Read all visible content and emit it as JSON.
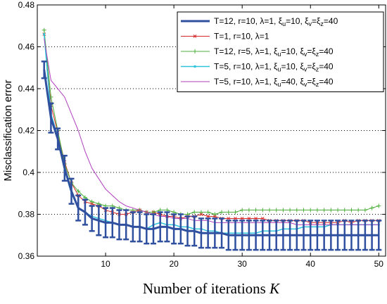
{
  "chart_data": {
    "type": "line",
    "title": "",
    "xlabel": "Number of iterations",
    "xlabel_var": "K",
    "ylabel": "Misclassification error",
    "xlim": [
      0,
      51
    ],
    "ylim": [
      0.36,
      0.48
    ],
    "xticks": [
      "10",
      "20",
      "30",
      "40",
      "50"
    ],
    "yticks": [
      "0.36",
      "0.38",
      "0.4",
      "0.42",
      "0.44",
      "0.46",
      "0.48"
    ],
    "grid": "horizontal dotted",
    "legend_position": "top-right",
    "series": [
      {
        "name": "T=12, r=10, λ=1, ξu=10, ξv=ξz=40",
        "legend": [
          {
            "t": "T=12, r=10, λ=1, ξ"
          },
          {
            "t": "u",
            "sub": true
          },
          {
            "t": "=10, ξ"
          },
          {
            "t": "v",
            "sub": true
          },
          {
            "t": "=ξ"
          },
          {
            "t": "z",
            "sub": true
          },
          {
            "t": "=40"
          }
        ],
        "color": "#2f4f9f",
        "marker": "none",
        "width": 3,
        "errorbar": true,
        "x": [
          1,
          2,
          3,
          4,
          5,
          6,
          7,
          8,
          9,
          10,
          11,
          12,
          13,
          14,
          15,
          16,
          17,
          18,
          19,
          20,
          21,
          22,
          23,
          24,
          25,
          26,
          27,
          28,
          29,
          30,
          31,
          32,
          33,
          34,
          35,
          36,
          37,
          38,
          39,
          40,
          41,
          42,
          43,
          44,
          45,
          46,
          47,
          48,
          49,
          50
        ],
        "y": [
          0.449,
          0.426,
          0.416,
          0.402,
          0.391,
          0.383,
          0.381,
          0.378,
          0.377,
          0.376,
          0.376,
          0.375,
          0.375,
          0.374,
          0.374,
          0.373,
          0.373,
          0.374,
          0.374,
          0.373,
          0.373,
          0.372,
          0.372,
          0.371,
          0.371,
          0.371,
          0.371,
          0.37,
          0.37,
          0.37,
          0.37,
          0.37,
          0.37,
          0.37,
          0.37,
          0.37,
          0.37,
          0.37,
          0.37,
          0.37,
          0.37,
          0.37,
          0.37,
          0.37,
          0.37,
          0.37,
          0.37,
          0.37,
          0.37,
          0.37
        ],
        "err": [
          0.004,
          0.007,
          0.005,
          0.006,
          0.006,
          0.006,
          0.006,
          0.006,
          0.007,
          0.007,
          0.007,
          0.007,
          0.007,
          0.007,
          0.007,
          0.007,
          0.007,
          0.007,
          0.007,
          0.007,
          0.007,
          0.007,
          0.007,
          0.007,
          0.007,
          0.007,
          0.007,
          0.007,
          0.007,
          0.007,
          0.007,
          0.007,
          0.007,
          0.007,
          0.007,
          0.007,
          0.007,
          0.007,
          0.007,
          0.007,
          0.007,
          0.007,
          0.007,
          0.007,
          0.007,
          0.007,
          0.007,
          0.007,
          0.007,
          0.007
        ]
      },
      {
        "name": "T=1, r=10, λ=1",
        "legend": [
          {
            "t": "T=1, r=10, λ=1"
          }
        ],
        "color": "#d62728",
        "marker": "x",
        "width": 1,
        "x": [
          1,
          2,
          3,
          4,
          5,
          6,
          7,
          8,
          9,
          10,
          11,
          12,
          13,
          14,
          15,
          16,
          17,
          18,
          19,
          20,
          21,
          22,
          23,
          24,
          25,
          26,
          27,
          28,
          29,
          30,
          31,
          32,
          33,
          34,
          35,
          36,
          37,
          38,
          39,
          40,
          41,
          42,
          43,
          44,
          45,
          46,
          47,
          48,
          49,
          50
        ],
        "y": [
          0.466,
          0.432,
          0.419,
          0.405,
          0.395,
          0.389,
          0.386,
          0.385,
          0.384,
          0.382,
          0.381,
          0.38,
          0.38,
          0.381,
          0.382,
          0.381,
          0.381,
          0.38,
          0.379,
          0.379,
          0.378,
          0.379,
          0.379,
          0.38,
          0.379,
          0.379,
          0.378,
          0.378,
          0.378,
          0.378,
          0.378,
          0.378,
          0.378,
          0.377,
          0.377,
          0.377,
          0.377,
          0.377,
          0.377,
          0.376,
          0.376,
          0.376,
          0.376,
          0.376,
          0.377,
          0.376,
          0.377,
          0.377,
          0.377,
          0.377
        ]
      },
      {
        "name": "T=12, r=5, λ=1, ξu=10, ξv=ξz=40",
        "legend": [
          {
            "t": "T=12, r=5, λ=1, ξ"
          },
          {
            "t": "u",
            "sub": true
          },
          {
            "t": "=10, ξ"
          },
          {
            "t": "v",
            "sub": true
          },
          {
            "t": "=ξ"
          },
          {
            "t": "z",
            "sub": true
          },
          {
            "t": "=40"
          }
        ],
        "color": "#4caf3a",
        "marker": "+",
        "width": 1,
        "x": [
          1,
          2,
          3,
          4,
          5,
          6,
          7,
          8,
          9,
          10,
          11,
          12,
          13,
          14,
          15,
          16,
          17,
          18,
          19,
          20,
          21,
          22,
          23,
          24,
          25,
          26,
          27,
          28,
          29,
          30,
          31,
          32,
          33,
          34,
          35,
          36,
          37,
          38,
          39,
          40,
          41,
          42,
          43,
          44,
          45,
          46,
          47,
          48,
          49,
          50
        ],
        "y": [
          0.468,
          0.436,
          0.42,
          0.404,
          0.395,
          0.391,
          0.388,
          0.386,
          0.385,
          0.384,
          0.384,
          0.383,
          0.382,
          0.382,
          0.382,
          0.381,
          0.381,
          0.382,
          0.382,
          0.381,
          0.38,
          0.38,
          0.381,
          0.381,
          0.381,
          0.38,
          0.381,
          0.381,
          0.381,
          0.382,
          0.382,
          0.382,
          0.382,
          0.382,
          0.382,
          0.382,
          0.382,
          0.382,
          0.382,
          0.382,
          0.382,
          0.382,
          0.382,
          0.382,
          0.382,
          0.382,
          0.382,
          0.382,
          0.383,
          0.384
        ]
      },
      {
        "name": "T=5, r=10, λ=1, ξu=10, ξv=ξz=40",
        "legend": [
          {
            "t": "T=5, r=10, λ=1, ξ"
          },
          {
            "t": "u",
            "sub": true
          },
          {
            "t": "=10, ξ"
          },
          {
            "t": "v",
            "sub": true
          },
          {
            "t": "=ξ"
          },
          {
            "t": "z",
            "sub": true
          },
          {
            "t": "=40"
          }
        ],
        "color": "#2ec4dc",
        "marker": "dot",
        "width": 1.5,
        "x": [
          1,
          2,
          3,
          4,
          5,
          6,
          7,
          8,
          9,
          10,
          11,
          12,
          13,
          14,
          15,
          16,
          17,
          18,
          19,
          20,
          21,
          22,
          23,
          24,
          25,
          26,
          27,
          28,
          29,
          30,
          31,
          32,
          33,
          34,
          35,
          36,
          37,
          38,
          39,
          40,
          41,
          42,
          43,
          44,
          45,
          46,
          47,
          48,
          49,
          50
        ],
        "y": [
          0.466,
          0.428,
          0.417,
          0.401,
          0.39,
          0.383,
          0.381,
          0.379,
          0.378,
          0.377,
          0.376,
          0.375,
          0.375,
          0.374,
          0.374,
          0.373,
          0.375,
          0.376,
          0.375,
          0.375,
          0.374,
          0.374,
          0.373,
          0.373,
          0.372,
          0.372,
          0.371,
          0.371,
          0.371,
          0.371,
          0.371,
          0.371,
          0.372,
          0.372,
          0.372,
          0.373,
          0.373,
          0.373,
          0.374,
          0.374,
          0.374,
          0.374,
          0.375,
          0.375,
          0.375,
          0.375,
          0.375,
          0.375,
          0.375,
          0.375
        ]
      },
      {
        "name": "T=5, r=10, λ=1, ξu=40, ξv=ξz=40",
        "legend": [
          {
            "t": "T=5, r=10, λ=1, ξ"
          },
          {
            "t": "u",
            "sub": true
          },
          {
            "t": "=40, ξ"
          },
          {
            "t": "v",
            "sub": true
          },
          {
            "t": "=ξ"
          },
          {
            "t": "z",
            "sub": true
          },
          {
            "t": "=40"
          }
        ],
        "color": "#b03fbf",
        "marker": "none",
        "width": 1,
        "x": [
          1,
          2,
          3,
          4,
          5,
          6,
          7,
          8,
          9,
          10,
          11,
          12,
          13,
          14,
          15,
          16,
          17,
          18,
          19,
          20,
          21,
          22,
          23,
          24,
          25,
          26,
          27,
          28,
          29,
          30,
          31,
          32,
          33,
          34,
          35,
          36,
          37,
          38,
          39,
          40,
          41,
          42,
          43,
          44,
          45,
          46,
          47,
          48,
          49,
          50
        ],
        "y": [
          0.464,
          0.444,
          0.44,
          0.436,
          0.428,
          0.42,
          0.41,
          0.402,
          0.397,
          0.392,
          0.389,
          0.386,
          0.384,
          0.383,
          0.382,
          0.381,
          0.38,
          0.379,
          0.379,
          0.378,
          0.378,
          0.378,
          0.377,
          0.377,
          0.377,
          0.376,
          0.376,
          0.376,
          0.376,
          0.376,
          0.376,
          0.376,
          0.376,
          0.376,
          0.376,
          0.376,
          0.376,
          0.375,
          0.375,
          0.375,
          0.375,
          0.375,
          0.375,
          0.375,
          0.375,
          0.375,
          0.375,
          0.375,
          0.375,
          0.375
        ]
      }
    ]
  }
}
